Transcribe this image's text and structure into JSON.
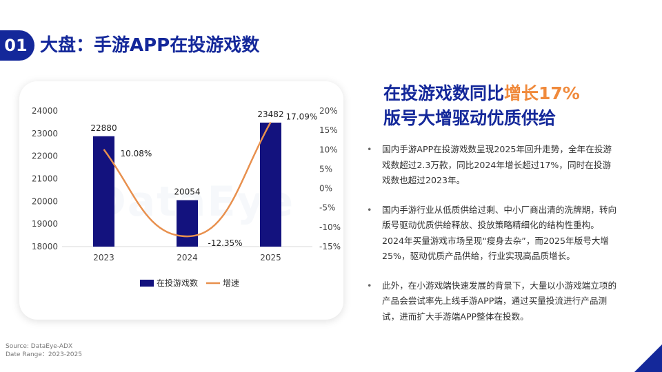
{
  "header": {
    "section_number": "01",
    "title": "大盘：手游APP在投游戏数"
  },
  "headline": {
    "line1_prefix": "在投游戏数同比",
    "line1_highlight": "增长17%",
    "line2": "版号大增驱动优质供给"
  },
  "bullets": [
    "国内手游APP在投游戏数呈现2025年回升走势，全年在投游戏数超过2.3万款，同比2024年增长超过17%，同时在投游戏数也超过2023年。",
    "国内手游行业从低质供给过剩、中小厂商出清的洗牌期，转向版号驱动优质供给释放、投放策略精细化的结构性重构。2024年买量游戏市场呈现“瘦身去杂”，而2025年版号大增25%，驱动优质产品供给，行业实现高品质增长。",
    "此外，在小游戏端快速发展的背景下，大量以小游戏端立项的产品会尝试率先上线手游APP端，通过买量投流进行产品测试，进而扩大手游端APP整体在投数。"
  ],
  "source": {
    "line1": "Source: DataEye-ADX",
    "line2": "Date Range：2023-2025"
  },
  "watermark": "DataEye",
  "colors": {
    "brand": "#14289a",
    "bar": "#13127e",
    "line": "#e8904e",
    "highlight": "#f08a3c"
  },
  "chart_data": {
    "type": "bar",
    "categories": [
      "2023",
      "2024",
      "2025"
    ],
    "series": [
      {
        "name": "在投游戏数",
        "type": "bar",
        "axis": "left",
        "values": [
          22880,
          20054,
          23482
        ],
        "labels": [
          "22880",
          "20054",
          "23482"
        ]
      },
      {
        "name": "增速",
        "type": "line",
        "axis": "right",
        "values": [
          10.08,
          -12.35,
          17.09
        ],
        "labels": [
          "10.08%",
          "-12.35%",
          "17.09%"
        ]
      }
    ],
    "ylim": [
      18000,
      24000
    ],
    "yticks": [
      "18000",
      "19000",
      "20000",
      "21000",
      "22000",
      "23000",
      "24000"
    ],
    "y2lim": [
      -15,
      20
    ],
    "y2ticks": [
      "-15%",
      "-10%",
      "-5%",
      "0%",
      "5%",
      "10%",
      "15%",
      "20%"
    ],
    "legend_position": "bottom",
    "grid": false
  }
}
